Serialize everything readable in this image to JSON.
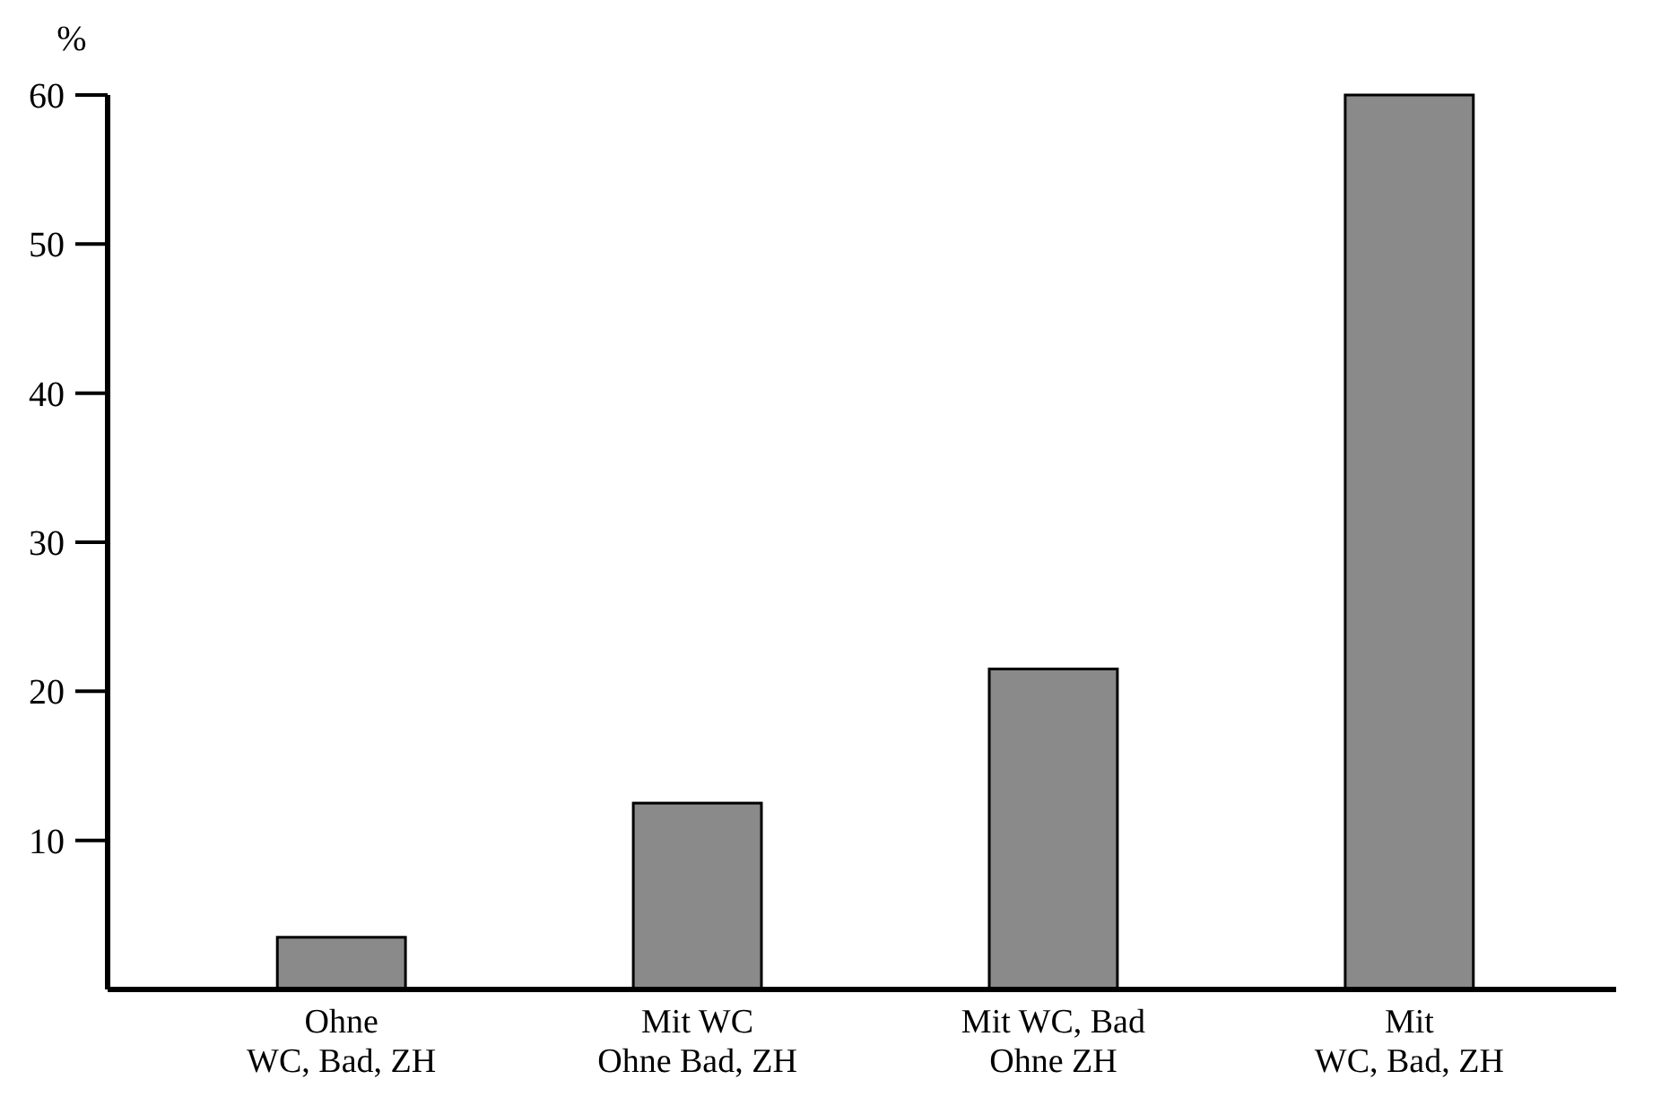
{
  "chart_data": {
    "type": "bar",
    "ylabel": "%",
    "categories": [
      "Ohne\nWC, Bad, ZH",
      "Mit WC\nOhne Bad, ZH",
      "Mit WC, Bad\nOhne ZH",
      "Mit\nWC, Bad, ZH"
    ],
    "values": [
      3.5,
      12.5,
      21.5,
      60
    ],
    "color": "#8a8a8a",
    "ylim": [
      0,
      60
    ],
    "yticks": [
      10,
      20,
      30,
      40,
      50,
      60
    ],
    "grid": false
  }
}
